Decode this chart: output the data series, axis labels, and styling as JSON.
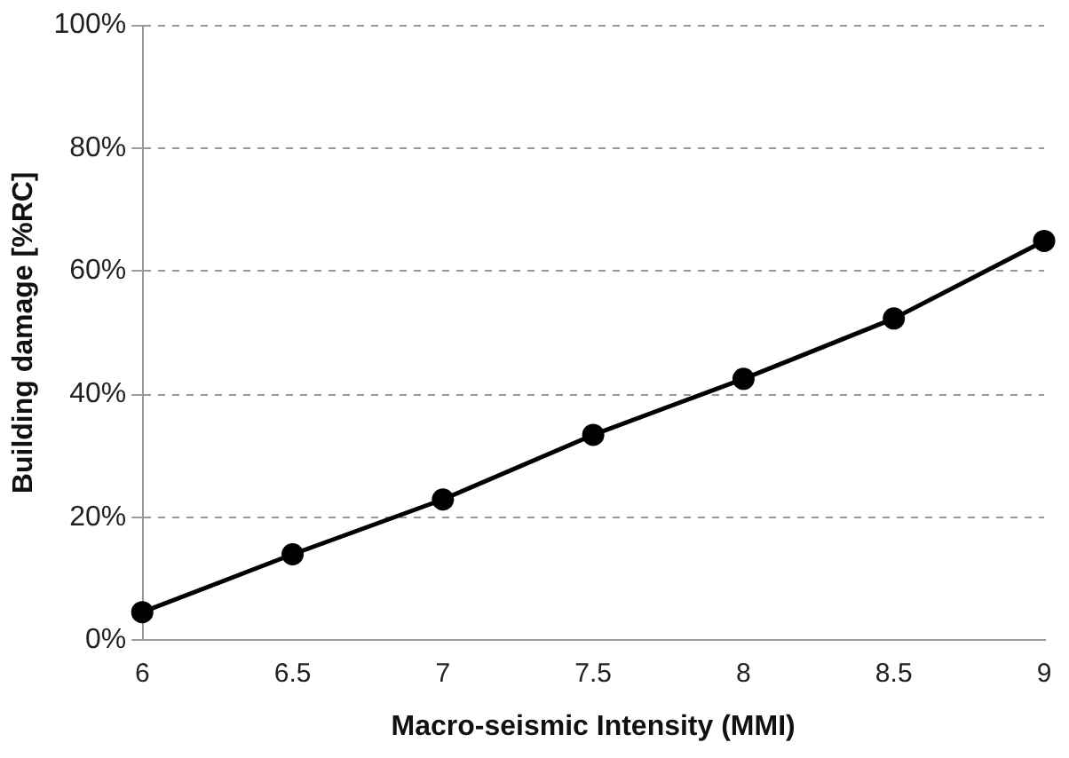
{
  "chart_data": {
    "type": "line",
    "xlabel": "Macro-seismic Intensity (MMI)",
    "ylabel": "Building damage [%RC]",
    "x": [
      6,
      6.5,
      7,
      7.5,
      8,
      8.5,
      9
    ],
    "series": [
      {
        "color": "#000000",
        "values": [
          4.6,
          14,
          22.9,
          33.4,
          42.5,
          52.3,
          64.9
        ]
      }
    ],
    "xlim": [
      6,
      9
    ],
    "xticks": [
      6,
      6.5,
      7,
      7.5,
      8,
      8.5,
      9
    ],
    "ylim": [
      0,
      100
    ],
    "yticks": [
      {
        "value": 0,
        "label": "0%"
      },
      {
        "value": 20,
        "label": "20%"
      },
      {
        "value": 40,
        "label": "40%"
      },
      {
        "value": 60,
        "label": "60%"
      },
      {
        "value": 80,
        "label": "80%"
      },
      {
        "value": 100,
        "label": "100%"
      }
    ],
    "grid": "y",
    "legend": false,
    "marker": "circle",
    "line_style": "solid"
  }
}
